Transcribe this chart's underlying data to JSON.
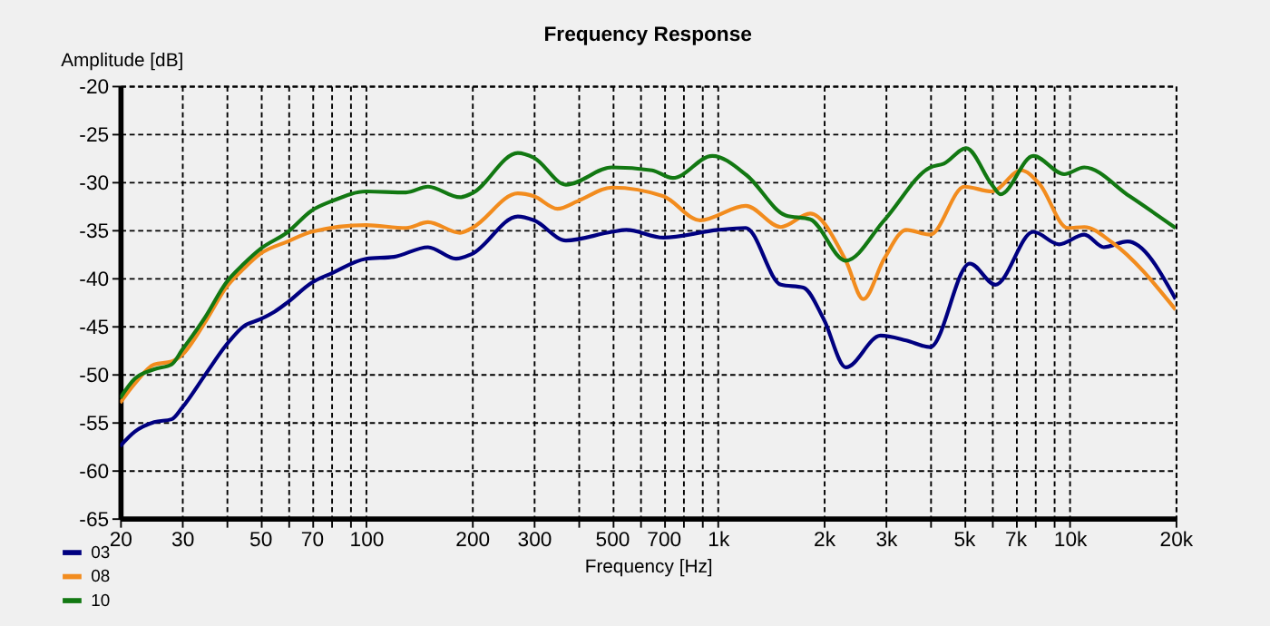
{
  "chart_data": {
    "type": "line",
    "title": "Frequency Response",
    "xlabel": "Frequency [Hz]",
    "ylabel": "Amplitude [dB]",
    "log": "x",
    "grid": true,
    "legend": "bottom left",
    "line_style": "solid",
    "marker": "none",
    "xlim": [
      20,
      20000
    ],
    "ylim": [
      -65,
      -20
    ],
    "xticks": [
      20,
      30,
      {
        "value": 40,
        "label": null
      },
      50,
      {
        "value": 60,
        "label": null
      },
      70,
      {
        "value": 80,
        "label": null
      },
      {
        "value": 90,
        "label": null
      },
      100,
      200,
      300,
      {
        "value": 400,
        "label": null
      },
      500,
      {
        "value": 600,
        "label": null
      },
      700,
      {
        "value": 800,
        "label": null
      },
      {
        "value": 900,
        "label": null
      },
      {
        "value": 1000,
        "label": "1k"
      },
      {
        "value": 2000,
        "label": "2k"
      },
      {
        "value": 3000,
        "label": "3k"
      },
      {
        "value": 4000,
        "label": null
      },
      {
        "value": 5000,
        "label": "5k"
      },
      {
        "value": 6000,
        "label": null
      },
      {
        "value": 7000,
        "label": "7k"
      },
      {
        "value": 8000,
        "label": null
      },
      {
        "value": 9000,
        "label": null
      },
      {
        "value": 10000,
        "label": "10k"
      },
      {
        "value": 20000,
        "label": "20k"
      }
    ],
    "yticks": [
      -65,
      -60,
      -55,
      -50,
      -45,
      -40,
      -35,
      -30,
      -25,
      -20
    ],
    "series": [
      {
        "name": "03",
        "color": "#000080",
        "x": [
          20,
          22,
          25,
          28,
          30,
          35,
          40,
          45,
          50,
          55,
          60,
          70,
          80,
          100,
          120,
          150,
          180,
          200,
          270,
          300,
          370,
          500,
          550,
          700,
          1000,
          1200,
          1510,
          1750,
          2000,
          2310,
          2900,
          3430,
          4010,
          5200,
          6150,
          7880,
          9320,
          11000,
          12500,
          14600,
          20000
        ],
        "values": [
          -57.5,
          -56,
          -55,
          -54.7,
          -53.5,
          -50,
          -47,
          -45,
          -44.3,
          -43.5,
          -42.5,
          -40.5,
          -39.5,
          -38,
          -37.8,
          -36.8,
          -38,
          -37.5,
          -33.6,
          -34,
          -36.1,
          -35.2,
          -35,
          -35.8,
          -35,
          -34.8,
          -40.7,
          -41,
          -44.3,
          -49.3,
          -46,
          -46.5,
          -47.2,
          -38.5,
          -40.7,
          -35.2,
          -36.5,
          -35.5,
          -36.8,
          -36.2,
          -42.2
        ]
      },
      {
        "name": "08",
        "color": "#f28c1e",
        "x": [
          20,
          22,
          25,
          28,
          30,
          35,
          40,
          45,
          50,
          60,
          70,
          100,
          130,
          150,
          185,
          200,
          270,
          300,
          350,
          400,
          500,
          700,
          890,
          1200,
          1510,
          1830,
          2310,
          2590,
          2970,
          3430,
          4010,
          5020,
          6010,
          7280,
          8200,
          9860,
          11000,
          13200,
          20000
        ],
        "values": [
          -53,
          -51,
          -49,
          -48.7,
          -48,
          -44.5,
          -41,
          -39,
          -37.5,
          -36.2,
          -35.2,
          -34.5,
          -34.8,
          -34.2,
          -35.3,
          -34.8,
          -31.2,
          -31.5,
          -32.8,
          -32,
          -30.6,
          -31.5,
          -34,
          -32.5,
          -34.7,
          -33.3,
          -38.2,
          -42.2,
          -38,
          -35,
          -35.5,
          -30.5,
          -31,
          -28.8,
          -30.2,
          -34.8,
          -34.7,
          -36.3,
          -43.3
        ]
      },
      {
        "name": "10",
        "color": "#127812",
        "x": [
          20,
          22,
          25,
          28,
          30,
          35,
          40,
          45,
          50,
          60,
          70,
          80,
          100,
          130,
          150,
          185,
          200,
          270,
          300,
          370,
          500,
          650,
          745,
          964,
          1206,
          1560,
          1830,
          2310,
          2970,
          4010,
          4390,
          5080,
          6010,
          6360,
          7880,
          9640,
          11000,
          14800,
          20000
        ],
        "values": [
          -52.5,
          -50.5,
          -49.5,
          -49,
          -47.5,
          -44,
          -40.5,
          -38.5,
          -37,
          -35.2,
          -33,
          -32,
          -31,
          -31.1,
          -30.5,
          -31.6,
          -31.2,
          -27,
          -27.5,
          -30.3,
          -28.5,
          -28.8,
          -29.6,
          -27.3,
          -29.3,
          -33.5,
          -33.9,
          -38.2,
          -34,
          -28.5,
          -28.1,
          -26.5,
          -30.3,
          -31.3,
          -27.3,
          -29.2,
          -28.5,
          -31.5,
          -34.8
        ]
      }
    ]
  }
}
